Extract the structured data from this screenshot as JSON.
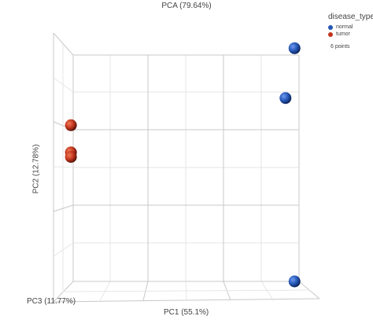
{
  "chart_data": {
    "type": "scatter",
    "title": "PCA (79.64%)",
    "xlabel": "PC1 (55.1%)",
    "ylabel": "PC2 (12.78%)",
    "zlabel": "PC3 (11.77%)",
    "xlim": [
      0,
      1
    ],
    "ylim": [
      0,
      1
    ],
    "grid": true,
    "legend_title": "disease_type",
    "legend_position": "top-right",
    "point_count_text": "6 points",
    "series": [
      {
        "name": "normal",
        "color": "#2456b5",
        "points": [
          {
            "x": 0.98,
            "y": 1.03
          },
          {
            "x": 0.94,
            "y": 0.81
          },
          {
            "x": 0.98,
            "y": 0.0
          }
        ]
      },
      {
        "name": "tumor",
        "color": "#c0341e",
        "points": [
          {
            "x": -0.01,
            "y": 0.69
          },
          {
            "x": -0.01,
            "y": 0.57
          },
          {
            "x": -0.01,
            "y": 0.55
          }
        ]
      }
    ]
  }
}
